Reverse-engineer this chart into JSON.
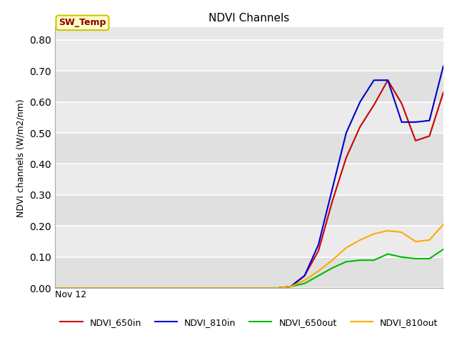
{
  "title": "NDVI Channels",
  "ylabel": "NDVI channels (W/m2/nm)",
  "ylim": [
    0.0,
    0.84
  ],
  "yticks": [
    0.0,
    0.1,
    0.2,
    0.3,
    0.4,
    0.5,
    0.6,
    0.7,
    0.8
  ],
  "background_color": "#e8e8e8",
  "band_colors": [
    "#e0e0e0",
    "#ebebeb"
  ],
  "legend_label": "SW_Temp",
  "legend_box_bg": "#ffffcc",
  "legend_box_edge": "#c8c800",
  "series": {
    "NDVI_650in": {
      "color": "#cc0000",
      "x": [
        0,
        1,
        2,
        3,
        4,
        5,
        6,
        7,
        8,
        9,
        10,
        11,
        12,
        13,
        14,
        15,
        16,
        17,
        18,
        19,
        20,
        21,
        22,
        23,
        24,
        25,
        26,
        27,
        28
      ],
      "y": [
        0.0,
        0.0,
        0.0,
        0.0,
        0.0,
        0.0,
        0.0,
        0.0,
        0.0,
        0.0,
        0.0,
        0.0,
        0.0,
        0.0,
        0.0,
        0.0,
        0.0,
        0.005,
        0.04,
        0.12,
        0.28,
        0.42,
        0.52,
        0.59,
        0.67,
        0.595,
        0.475,
        0.49,
        0.63
      ]
    },
    "NDVI_810in": {
      "color": "#0000cc",
      "x": [
        0,
        1,
        2,
        3,
        4,
        5,
        6,
        7,
        8,
        9,
        10,
        11,
        12,
        13,
        14,
        15,
        16,
        17,
        18,
        19,
        20,
        21,
        22,
        23,
        24,
        25,
        26,
        27,
        28
      ],
      "y": [
        0.0,
        0.0,
        0.0,
        0.0,
        0.0,
        0.0,
        0.0,
        0.0,
        0.0,
        0.0,
        0.0,
        0.0,
        0.0,
        0.0,
        0.0,
        0.0,
        0.0,
        0.005,
        0.04,
        0.14,
        0.32,
        0.5,
        0.6,
        0.67,
        0.67,
        0.535,
        0.535,
        0.54,
        0.715
      ]
    },
    "NDVI_650out": {
      "color": "#00bb00",
      "x": [
        0,
        1,
        2,
        3,
        4,
        5,
        6,
        7,
        8,
        9,
        10,
        11,
        12,
        13,
        14,
        15,
        16,
        17,
        18,
        19,
        20,
        21,
        22,
        23,
        24,
        25,
        26,
        27,
        28
      ],
      "y": [
        0.0,
        0.0,
        0.0,
        0.0,
        0.0,
        0.0,
        0.0,
        0.0,
        0.0,
        0.0,
        0.0,
        0.0,
        0.0,
        0.0,
        0.0,
        0.0,
        0.0,
        0.005,
        0.015,
        0.04,
        0.065,
        0.085,
        0.09,
        0.09,
        0.11,
        0.1,
        0.095,
        0.095,
        0.125
      ]
    },
    "NDVI_810out": {
      "color": "#ffaa00",
      "x": [
        0,
        1,
        2,
        3,
        4,
        5,
        6,
        7,
        8,
        9,
        10,
        11,
        12,
        13,
        14,
        15,
        16,
        17,
        18,
        19,
        20,
        21,
        22,
        23,
        24,
        25,
        26,
        27,
        28
      ],
      "y": [
        0.0,
        0.0,
        0.0,
        0.0,
        0.0,
        0.0,
        0.0,
        0.0,
        0.0,
        0.0,
        0.0,
        0.0,
        0.0,
        0.0,
        0.0,
        0.0,
        0.0,
        0.005,
        0.025,
        0.055,
        0.09,
        0.13,
        0.155,
        0.175,
        0.185,
        0.18,
        0.15,
        0.155,
        0.205
      ]
    }
  },
  "x_tick_label": "Nov 12",
  "x_tick_pos": 0,
  "figsize": [
    6.4,
    4.8
  ],
  "dpi": 100
}
